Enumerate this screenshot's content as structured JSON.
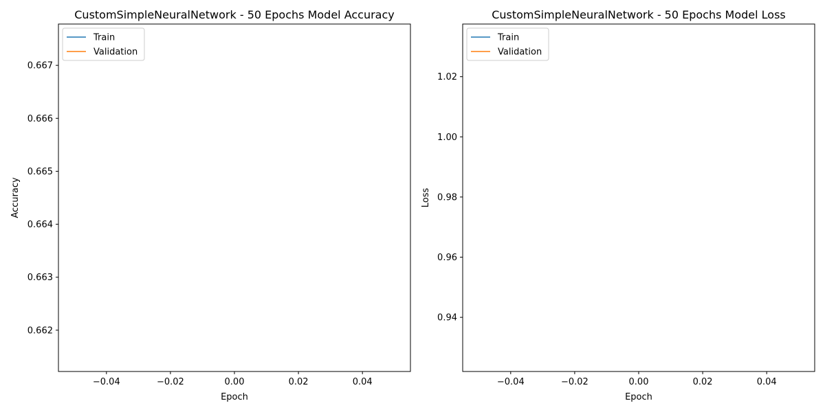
{
  "chart_data": [
    {
      "type": "line",
      "title": "CustomSimpleNeuralNetwork - 50 Epochs Model Accuracy",
      "xlabel": "Epoch",
      "ylabel": "Accuracy",
      "xlim": [
        -0.055,
        0.055
      ],
      "ylim": [
        0.66122,
        0.66778
      ],
      "xticks": [
        -0.04,
        -0.02,
        0.0,
        0.02,
        0.04
      ],
      "xtick_labels": [
        "−0.04",
        "−0.02",
        "0.00",
        "0.02",
        "0.04"
      ],
      "yticks": [
        0.662,
        0.663,
        0.664,
        0.665,
        0.666,
        0.667
      ],
      "ytick_labels": [
        "0.662",
        "0.663",
        "0.664",
        "0.665",
        "0.666",
        "0.667"
      ],
      "grid": false,
      "legend_position": "top-left",
      "series": [
        {
          "name": "Train",
          "color": "#1f77b4",
          "x": [],
          "y": []
        },
        {
          "name": "Validation",
          "color": "#ff7f0e",
          "x": [],
          "y": []
        }
      ]
    },
    {
      "type": "line",
      "title": "CustomSimpleNeuralNetwork - 50 Epochs Model Loss",
      "xlabel": "Epoch",
      "ylabel": "Loss",
      "xlim": [
        -0.055,
        0.055
      ],
      "ylim": [
        0.922,
        1.0375
      ],
      "xticks": [
        -0.04,
        -0.02,
        0.0,
        0.02,
        0.04
      ],
      "xtick_labels": [
        "−0.04",
        "−0.02",
        "0.00",
        "0.02",
        "0.04"
      ],
      "yticks": [
        0.94,
        0.96,
        0.98,
        1.0,
        1.02
      ],
      "ytick_labels": [
        "0.94",
        "0.96",
        "0.98",
        "1.00",
        "1.02"
      ],
      "grid": false,
      "legend_position": "top-left",
      "series": [
        {
          "name": "Train",
          "color": "#1f77b4",
          "x": [],
          "y": []
        },
        {
          "name": "Validation",
          "color": "#ff7f0e",
          "x": [],
          "y": []
        }
      ]
    }
  ]
}
